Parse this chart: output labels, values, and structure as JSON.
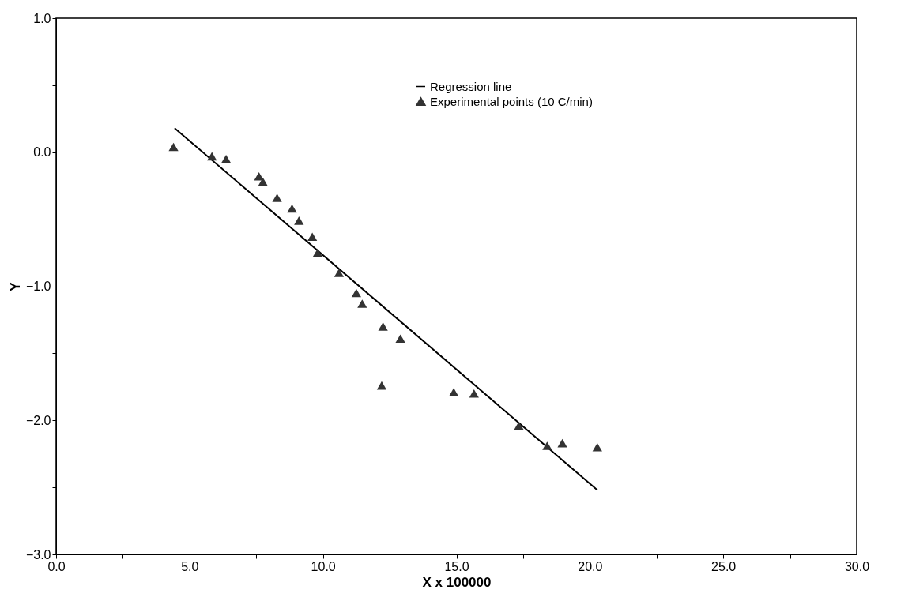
{
  "chart_data": {
    "type": "scatter",
    "xlabel": "X x 100000",
    "ylabel": "Y",
    "xlim": [
      0,
      30
    ],
    "ylim": [
      -3,
      1
    ],
    "xticks": [
      {
        "value": 0,
        "label": "0.0"
      },
      {
        "value": 2.5,
        "label": null
      },
      {
        "value": 5,
        "label": "5.0"
      },
      {
        "value": 7.5,
        "label": null
      },
      {
        "value": 10,
        "label": "10.0"
      },
      {
        "value": 12.5,
        "label": null
      },
      {
        "value": 15,
        "label": "15.0"
      },
      {
        "value": 17.5,
        "label": null
      },
      {
        "value": 20,
        "label": "20.0"
      },
      {
        "value": 22.5,
        "label": null
      },
      {
        "value": 25,
        "label": "25.0"
      },
      {
        "value": 27.5,
        "label": null
      },
      {
        "value": 30,
        "label": "30.0"
      }
    ],
    "yticks": [
      {
        "value": -3,
        "label": "−3.0"
      },
      {
        "value": -2.5,
        "label": null
      },
      {
        "value": -2,
        "label": "−2.0"
      },
      {
        "value": -1.5,
        "label": null
      },
      {
        "value": -1,
        "label": "−1.0"
      },
      {
        "value": -0.5,
        "label": null
      },
      {
        "value": 0,
        "label": "0.0"
      },
      {
        "value": 0.5,
        "label": null
      },
      {
        "value": 1,
        "label": "1.0"
      }
    ],
    "grid": false,
    "legend": "top right",
    "series": [
      {
        "name": "Regression line",
        "type": "line",
        "color": "#000000",
        "marker": "none",
        "line_style": "solid",
        "x": [
          4.44,
          20.28
        ],
        "values": [
          0.18,
          -2.52
        ]
      },
      {
        "name": "Experimental points (10 C/min)",
        "type": "scatter",
        "color": "#333333",
        "marker": "triangle",
        "x": [
          4.4,
          5.84,
          6.37,
          7.6,
          7.75,
          8.28,
          8.84,
          9.1,
          9.6,
          9.8,
          10.6,
          11.25,
          11.47,
          12.25,
          12.9,
          12.2,
          14.9,
          15.66,
          17.34,
          18.4,
          18.97,
          20.28
        ],
        "values": [
          0.04,
          -0.03,
          -0.05,
          -0.18,
          -0.22,
          -0.34,
          -0.42,
          -0.51,
          -0.63,
          -0.75,
          -0.9,
          -1.05,
          -1.13,
          -1.3,
          -1.39,
          -1.74,
          -1.79,
          -1.8,
          -2.04,
          -2.19,
          -2.17,
          -2.2
        ]
      }
    ]
  }
}
